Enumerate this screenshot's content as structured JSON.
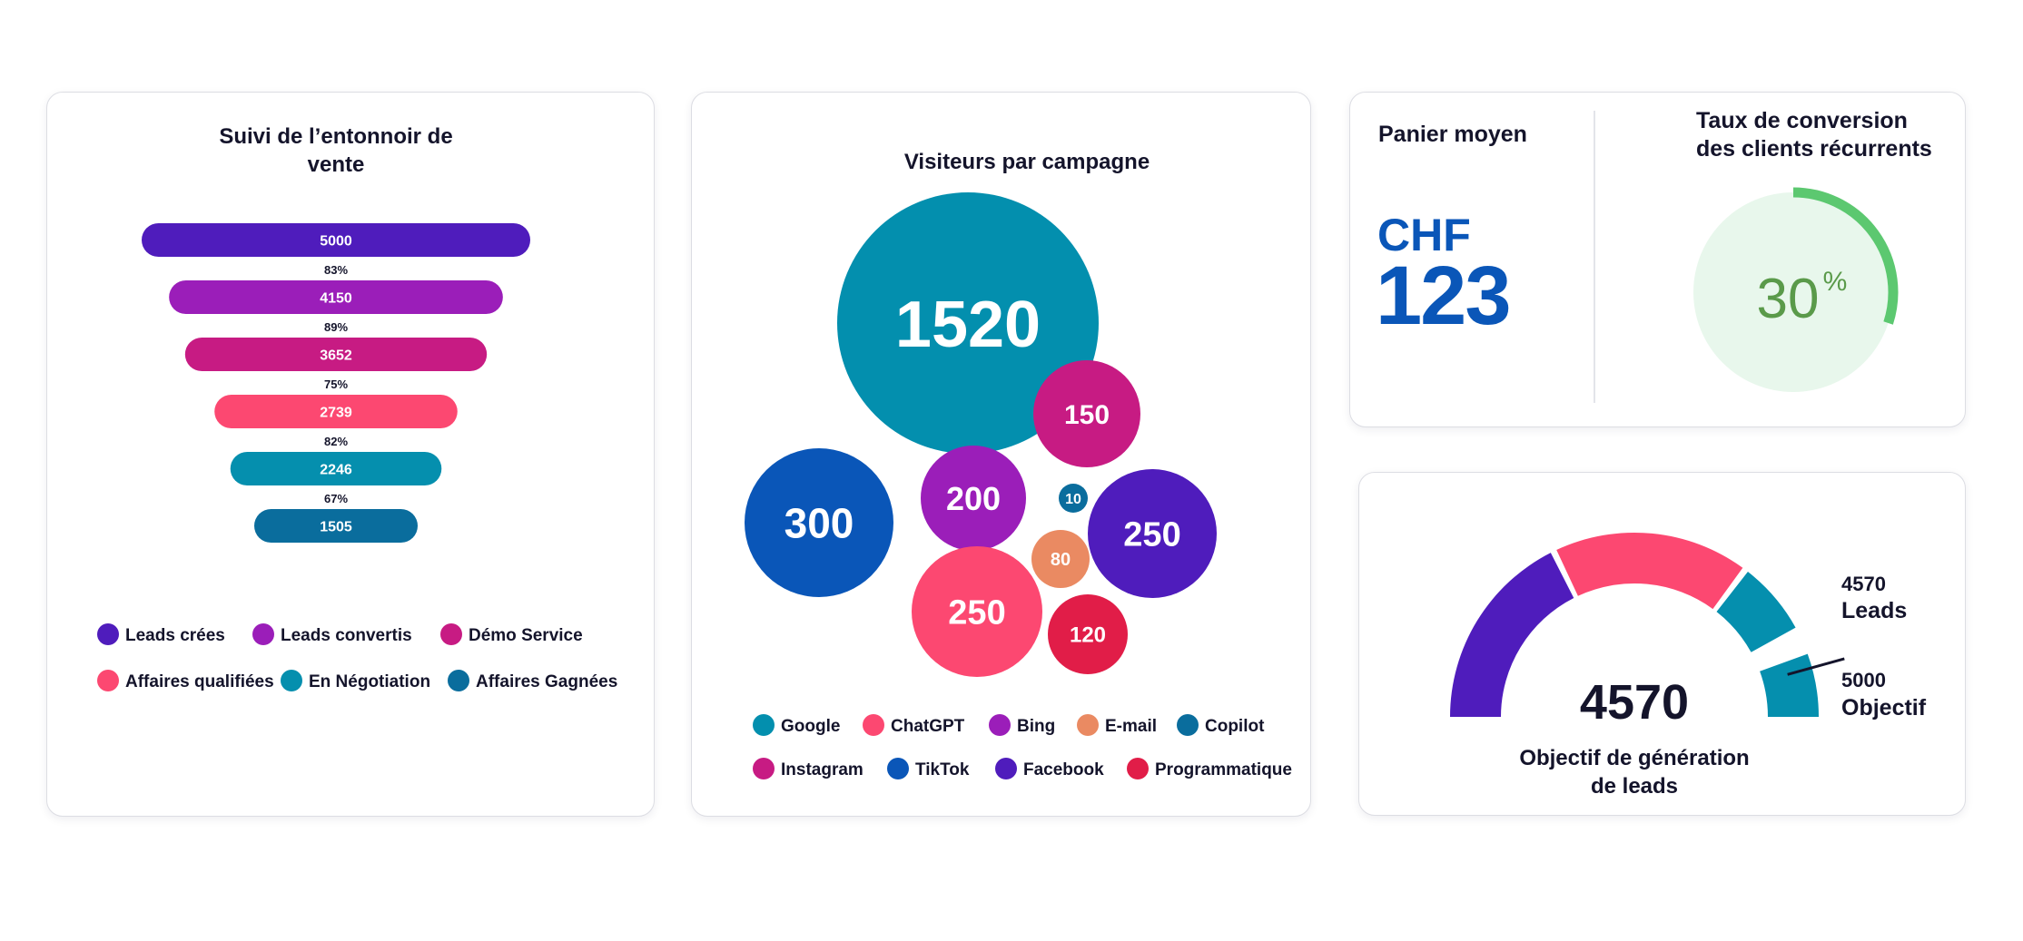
{
  "funnel": {
    "title_line1": "Suivi de l’entonnoir de",
    "title_line2": "vente",
    "stages": [
      {
        "value": 5000,
        "label": "5000",
        "color": "#4f1cbc"
      },
      {
        "value": 4150,
        "label": "4150",
        "color": "#9b1eb9"
      },
      {
        "value": 3652,
        "label": "3652",
        "color": "#c71b83"
      },
      {
        "value": 2739,
        "label": "2739",
        "color": "#fc4871"
      },
      {
        "value": 2246,
        "label": "2246",
        "color": "#058fae"
      },
      {
        "value": 1505,
        "label": "1505",
        "color": "#0a6d9d"
      }
    ],
    "conversion_rates": [
      "83%",
      "89%",
      "75%",
      "82%",
      "67%"
    ],
    "legend": [
      {
        "label": "Leads crées",
        "color": "#4f1cbc"
      },
      {
        "label": "Leads convertis",
        "color": "#9b1eb9"
      },
      {
        "label": "Démo Service",
        "color": "#c71b83"
      },
      {
        "label": "Affaires qualifiées",
        "color": "#fc4871"
      },
      {
        "label": "En Négotiation",
        "color": "#058fae"
      },
      {
        "label": "Affaires Gagnées",
        "color": "#0a6d9d"
      }
    ]
  },
  "campaigns": {
    "title": "Visiteurs par campagne",
    "bubbles": [
      {
        "channel": "Google",
        "label": "1520",
        "value": 1520,
        "color": "#038fae"
      },
      {
        "channel": "TikTok",
        "label": "300",
        "value": 300,
        "color": "#0a56b8"
      },
      {
        "channel": "Bing",
        "label": "200",
        "value": 200,
        "color": "#9b1eb9"
      },
      {
        "channel": "Instagram",
        "label": "150",
        "value": 150,
        "color": "#c71b83"
      },
      {
        "channel": "Copilot",
        "label": "10",
        "value": 10,
        "color": "#0a6d9d"
      },
      {
        "channel": "Facebook",
        "label": "250",
        "value": 250,
        "color": "#4f1cbc"
      },
      {
        "channel": "E-mail",
        "label": "80",
        "value": 80,
        "color": "#ea8a62"
      },
      {
        "channel": "ChatGPT",
        "label": "250",
        "value": 250,
        "color": "#fc4871"
      },
      {
        "channel": "Programmatique",
        "label": "120",
        "value": 120,
        "color": "#e11d48"
      }
    ],
    "legend": [
      {
        "label": "Google",
        "color": "#038fae"
      },
      {
        "label": "ChatGPT",
        "color": "#fc4871"
      },
      {
        "label": "Bing",
        "color": "#9b1eb9"
      },
      {
        "label": "E-mail",
        "color": "#ea8a62"
      },
      {
        "label": "Copilot",
        "color": "#0a6d9d"
      },
      {
        "label": "Instagram",
        "color": "#c71b83"
      },
      {
        "label": "TikTok",
        "color": "#0a56b8"
      },
      {
        "label": "Facebook",
        "color": "#4f1cbc"
      },
      {
        "label": "Programmatique",
        "color": "#e11d48"
      }
    ]
  },
  "kpi": {
    "basket_title": "Panier moyen",
    "currency": "CHF",
    "basket_value": "123",
    "conversion_title_line1": "Taux de conversion",
    "conversion_title_line2": "des clients récurrents",
    "conversion_value": "30",
    "conversion_unit": "%",
    "conversion_fraction": 0.3,
    "ring_color": "#5cc870",
    "ring_bg": "#e8f7ec",
    "value_color": "#5a9a4a"
  },
  "gauge": {
    "value": "4570",
    "caption_line1": "Objectif de génération",
    "caption_line2": "de leads",
    "current_value": "4570",
    "current_label": "Leads",
    "target_value": "5000",
    "target_label": "Objectif",
    "fraction": 0.914,
    "segment_colors": [
      "#4f1cbc",
      "#fc4871",
      "#058fae",
      "#058fae"
    ]
  },
  "chart_data": [
    {
      "type": "bar",
      "title": "Suivi de l’entonnoir de vente",
      "categories": [
        "Leads crées",
        "Leads convertis",
        "Démo Service",
        "Affaires qualifiées",
        "En Négotiation",
        "Affaires Gagnées"
      ],
      "values": [
        5000,
        4150,
        3652,
        2739,
        2246,
        1505
      ],
      "conversion_rates": [
        "83%",
        "89%",
        "75%",
        "82%",
        "67%"
      ]
    },
    {
      "type": "scatter",
      "title": "Visiteurs par campagne",
      "categories": [
        "Google",
        "TikTok",
        "Bing",
        "Instagram",
        "Copilot",
        "Facebook",
        "E-mail",
        "ChatGPT",
        "Programmatique"
      ],
      "values": [
        1520,
        300,
        200,
        150,
        10,
        250,
        80,
        250,
        120
      ]
    }
  ]
}
